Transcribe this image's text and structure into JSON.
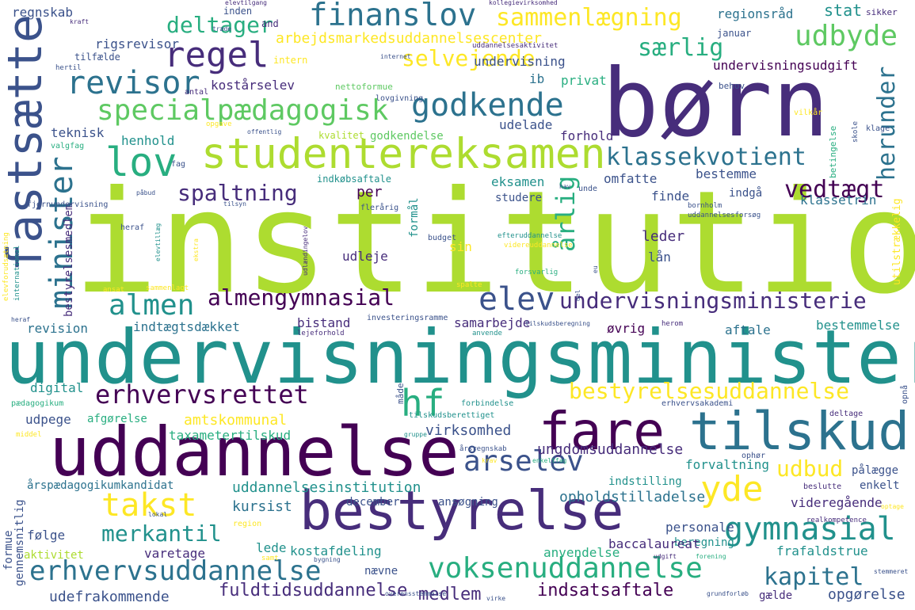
{
  "colors": {
    "background": "#ffffff",
    "palette": [
      "#440154",
      "#472d7b",
      "#3b528b",
      "#2c728e",
      "#21918c",
      "#28ae80",
      "#5ec962",
      "#addc30",
      "#fde725"
    ]
  },
  "words": [
    {
      "text": "institution",
      "color": "#addc30"
    },
    {
      "text": "undervisningsminister",
      "color": "#21918c"
    },
    {
      "text": "børn",
      "color": "#472d7b"
    },
    {
      "text": "uddannelse",
      "color": "#440154"
    },
    {
      "text": "bestyrelse",
      "color": "#472d7b"
    },
    {
      "text": "tilskud",
      "color": "#2c728e"
    },
    {
      "text": "fare",
      "color": "#440154"
    },
    {
      "text": "studentereksamen",
      "color": "#addc30"
    },
    {
      "text": "fastsætte",
      "color": "#3b528b"
    },
    {
      "text": "minister",
      "color": "#2c728e"
    },
    {
      "text": "specialpædagogisk",
      "color": "#5ec962"
    },
    {
      "text": "finanslov",
      "color": "#2c728e"
    },
    {
      "text": "regel",
      "color": "#472d7b"
    },
    {
      "text": "revisor",
      "color": "#2c728e"
    },
    {
      "text": "godkende",
      "color": "#2c728e"
    },
    {
      "text": "lov",
      "color": "#28ae80"
    },
    {
      "text": "deltager",
      "color": "#28ae80"
    },
    {
      "text": "sammenlægning",
      "color": "#fde725"
    },
    {
      "text": "udbyde",
      "color": "#5ec962"
    },
    {
      "text": "særlig",
      "color": "#28ae80"
    },
    {
      "text": "selvejende",
      "color": "#fde725"
    },
    {
      "text": "klassekvotient",
      "color": "#2c728e"
    },
    {
      "text": "herunder",
      "color": "#2c728e"
    },
    {
      "text": "spaltning",
      "color": "#472d7b"
    },
    {
      "text": "vedtægt",
      "color": "#440154"
    },
    {
      "text": "årlig",
      "color": "#28ae80"
    },
    {
      "text": "almen",
      "color": "#21918c"
    },
    {
      "text": "almengymnasial",
      "color": "#440154"
    },
    {
      "text": "elev",
      "color": "#3b528b"
    },
    {
      "text": "undervisningsministerie",
      "color": "#472d7b"
    },
    {
      "text": "erhvervsrettet",
      "color": "#440154"
    },
    {
      "text": "hf",
      "color": "#28ae80"
    },
    {
      "text": "bestyrelsesuddannelse",
      "color": "#fde725"
    },
    {
      "text": "takst",
      "color": "#fde725"
    },
    {
      "text": "merkantil",
      "color": "#21918c"
    },
    {
      "text": "årselev",
      "color": "#3b528b"
    },
    {
      "text": "yde",
      "color": "#fde725"
    },
    {
      "text": "gymnasial",
      "color": "#21918c"
    },
    {
      "text": "erhvervsuddannelse",
      "color": "#2c728e"
    },
    {
      "text": "voksenuddannelse",
      "color": "#28ae80"
    },
    {
      "text": "kapitel",
      "color": "#2c728e"
    },
    {
      "text": "udbud",
      "color": "#fde725"
    },
    {
      "text": "ungdomsuddannelse",
      "color": "#472d7b"
    },
    {
      "text": "virksomhed",
      "color": "#3b528b"
    },
    {
      "text": "uddannelsesinstitution",
      "color": "#21918c"
    },
    {
      "text": "kursist",
      "color": "#2c728e"
    },
    {
      "text": "fuldtidsuddannelse",
      "color": "#472d7b"
    },
    {
      "text": "udefrakommende",
      "color": "#3b528b"
    },
    {
      "text": "medlem",
      "color": "#472d7b"
    },
    {
      "text": "indsatsaftale",
      "color": "#440154"
    },
    {
      "text": "opgørelse",
      "color": "#3b528b"
    },
    {
      "text": "regnskab",
      "color": "#3b528b"
    },
    {
      "text": "rigsrevisor",
      "color": "#3b528b"
    },
    {
      "text": "arbejdsmarkedsuddannelsescenter",
      "color": "#fde725"
    },
    {
      "text": "regionsråd",
      "color": "#2c728e"
    },
    {
      "text": "stat",
      "color": "#21918c"
    },
    {
      "text": "undervisningsudgift",
      "color": "#440154"
    },
    {
      "text": "kostårselev",
      "color": "#472d7b"
    },
    {
      "text": "undervisning",
      "color": "#3b528b"
    },
    {
      "text": "ib",
      "color": "#2c728e"
    },
    {
      "text": "privat",
      "color": "#28ae80"
    },
    {
      "text": "udelade",
      "color": "#3b528b"
    },
    {
      "text": "forhold",
      "color": "#472d7b"
    },
    {
      "text": "teknisk",
      "color": "#3b528b"
    },
    {
      "text": "henhold",
      "color": "#21918c"
    },
    {
      "text": "godkendelse",
      "color": "#5ec962"
    },
    {
      "text": "kvalitet",
      "color": "#addc30"
    },
    {
      "text": "omfatte",
      "color": "#3b528b"
    },
    {
      "text": "bestemme",
      "color": "#3b528b"
    },
    {
      "text": "per",
      "color": "#440154"
    },
    {
      "text": "eksamen",
      "color": "#21918c"
    },
    {
      "text": "finde",
      "color": "#3b528b"
    },
    {
      "text": "indgå",
      "color": "#3b528b"
    },
    {
      "text": "klassetrin",
      "color": "#2c728e"
    },
    {
      "text": "studere",
      "color": "#3b528b"
    },
    {
      "text": "leder",
      "color": "#472d7b"
    },
    {
      "text": "lån",
      "color": "#3b528b"
    },
    {
      "text": "udleje",
      "color": "#472d7b"
    },
    {
      "text": "sin",
      "color": "#fde725"
    },
    {
      "text": "revision",
      "color": "#2c728e"
    },
    {
      "text": "indtægtsdækket",
      "color": "#2c728e"
    },
    {
      "text": "bistand",
      "color": "#472d7b"
    },
    {
      "text": "samarbejde",
      "color": "#472d7b"
    },
    {
      "text": "øvrig",
      "color": "#440154"
    },
    {
      "text": "aftale",
      "color": "#2c728e"
    },
    {
      "text": "bestemmelse",
      "color": "#21918c"
    },
    {
      "text": "amtskommunal",
      "color": "#fde725"
    },
    {
      "text": "taxametertilskud",
      "color": "#28ae80"
    },
    {
      "text": "udpege",
      "color": "#3b528b"
    },
    {
      "text": "afgørelse",
      "color": "#28ae80"
    },
    {
      "text": "digital",
      "color": "#21918c"
    },
    {
      "text": "forvaltning",
      "color": "#21918c"
    },
    {
      "text": "indstilling",
      "color": "#21918c"
    },
    {
      "text": "pålægge",
      "color": "#3b528b"
    },
    {
      "text": "enkelt",
      "color": "#3b528b"
    },
    {
      "text": "videregående",
      "color": "#472d7b"
    },
    {
      "text": "årspædagogikumkandidat",
      "color": "#2c728e"
    },
    {
      "text": "december",
      "color": "#3b528b"
    },
    {
      "text": "ansøgning",
      "color": "#3b528b"
    },
    {
      "text": "opholdstilladelse",
      "color": "#2c728e"
    },
    {
      "text": "personale",
      "color": "#3b528b"
    },
    {
      "text": "beregning",
      "color": "#21918c"
    },
    {
      "text": "følge",
      "color": "#3b528b"
    },
    {
      "text": "varetage",
      "color": "#472d7b"
    },
    {
      "text": "lede",
      "color": "#21918c"
    },
    {
      "text": "kostafdeling",
      "color": "#21918c"
    },
    {
      "text": "baccalaureat",
      "color": "#472d7b"
    },
    {
      "text": "frafaldstrue",
      "color": "#21918c"
    },
    {
      "text": "anvendelse",
      "color": "#28ae80"
    },
    {
      "text": "aktivitet",
      "color": "#addc30"
    },
    {
      "text": "nævne",
      "color": "#3b528b"
    },
    {
      "text": "gælde",
      "color": "#472d7b"
    },
    {
      "text": "formue",
      "color": "#3b528b"
    },
    {
      "text": "gennemsnitlig",
      "color": "#3b528b"
    },
    {
      "text": "bestyrelsesmedlem",
      "color": "#472d7b"
    },
    {
      "text": "formål",
      "color": "#21918c"
    },
    {
      "text": "betingelse",
      "color": "#28ae80"
    },
    {
      "text": "utilstrækkelig",
      "color": "#fde725"
    },
    {
      "text": "and",
      "color": "#472d7b"
    },
    {
      "text": "inden",
      "color": "#3b528b"
    },
    {
      "text": "januar",
      "color": "#3b528b"
    },
    {
      "text": "sikker",
      "color": "#472d7b"
    },
    {
      "text": "tilfælde",
      "color": "#3b528b"
    },
    {
      "text": "intern",
      "color": "#fde725"
    },
    {
      "text": "behov",
      "color": "#3b528b"
    },
    {
      "text": "antal",
      "color": "#472d7b"
    },
    {
      "text": "nettoformue",
      "color": "#5ec962"
    },
    {
      "text": "lovgivning",
      "color": "#3b528b"
    },
    {
      "text": "internet",
      "color": "#3b528b"
    },
    {
      "text": "uddannelsesaktivitet",
      "color": "#472d7b"
    },
    {
      "text": "elevtilgang",
      "color": "#472d7b"
    },
    {
      "text": "kollegievirksomhed",
      "color": "#472d7b"
    },
    {
      "text": "kraft",
      "color": "#472d7b"
    },
    {
      "text": "træde",
      "color": "#3b528b"
    },
    {
      "text": "hertil",
      "color": "#3b528b"
    },
    {
      "text": "opgave",
      "color": "#fde725"
    },
    {
      "text": "offentlig",
      "color": "#3b528b"
    },
    {
      "text": "vilkår",
      "color": "#fde725"
    },
    {
      "text": "skole",
      "color": "#3b528b"
    },
    {
      "text": "klage",
      "color": "#3b528b"
    },
    {
      "text": "valgfag",
      "color": "#28ae80"
    },
    {
      "text": "fag",
      "color": "#3b528b"
    },
    {
      "text": "indkøbsaftale",
      "color": "#21918c"
    },
    {
      "text": "fjernundervisning",
      "color": "#3b528b"
    },
    {
      "text": "heraf",
      "color": "#3b528b"
    },
    {
      "text": "heraf",
      "color": "#3b528b"
    },
    {
      "text": "ejendom",
      "color": "#28ae80"
    },
    {
      "text": "koordinere",
      "color": "#3b528b"
    },
    {
      "text": "gennemføre",
      "color": "#3b528b"
    },
    {
      "text": "aktivitetsindberetning",
      "color": "#472d7b"
    },
    {
      "text": "måde",
      "color": "#3b528b"
    },
    {
      "text": "tilskudsberettiget",
      "color": "#21918c"
    },
    {
      "text": "forbindelse",
      "color": "#21918c"
    },
    {
      "text": "erhvervsakademi",
      "color": "#3b528b"
    },
    {
      "text": "deltage",
      "color": "#472d7b"
    },
    {
      "text": "opnå",
      "color": "#3b528b"
    },
    {
      "text": "pædagogikum",
      "color": "#28ae80"
    },
    {
      "text": "middel",
      "color": "#fde725"
    },
    {
      "text": "gruppe",
      "color": "#21918c"
    },
    {
      "text": "årsregnskab",
      "color": "#3b528b"
    },
    {
      "text": "krav",
      "color": "#fde725"
    },
    {
      "text": "enkeltfag",
      "color": "#28ae80"
    },
    {
      "text": "ophør",
      "color": "#3b528b"
    },
    {
      "text": "beslutte",
      "color": "#472d7b"
    },
    {
      "text": "optage",
      "color": "#fde725"
    },
    {
      "text": "region",
      "color": "#fde725"
    },
    {
      "text": "lokal",
      "color": "#3b528b"
    },
    {
      "text": "realkompetence",
      "color": "#472d7b"
    },
    {
      "text": "samt",
      "color": "#fde725"
    },
    {
      "text": "bygning",
      "color": "#3b528b"
    },
    {
      "text": "udgift",
      "color": "#472d7b"
    },
    {
      "text": "forening",
      "color": "#28ae80"
    },
    {
      "text": "stemmeret",
      "color": "#3b528b"
    },
    {
      "text": "overensstemmelse",
      "color": "#3b528b"
    },
    {
      "text": "virke",
      "color": "#3b528b"
    },
    {
      "text": "grundforløb",
      "color": "#3b528b"
    },
    {
      "text": "udlændingelov",
      "color": "#472d7b"
    },
    {
      "text": "bornholm",
      "color": "#3b528b"
    },
    {
      "text": "uddannelsesforsøg",
      "color": "#3b528b"
    },
    {
      "text": "unde",
      "color": "#3b528b"
    },
    {
      "text": "flerårig",
      "color": "#3b528b"
    },
    {
      "text": "påbud",
      "color": "#3b528b"
    },
    {
      "text": "tilsyn",
      "color": "#3b528b"
    },
    {
      "text": "hav",
      "color": "#3b528b"
    },
    {
      "text": "budget",
      "color": "#3b528b"
    },
    {
      "text": "efteruddannelse",
      "color": "#21918c"
    },
    {
      "text": "videreuddannelse",
      "color": "#fde725"
    },
    {
      "text": "forsvarlig",
      "color": "#28ae80"
    },
    {
      "text": "spalte",
      "color": "#fde725"
    },
    {
      "text": "sammenlagt",
      "color": "#fde725"
    },
    {
      "text": "tilskudsberegning",
      "color": "#3b528b"
    },
    {
      "text": "herom",
      "color": "#472d7b"
    },
    {
      "text": "anvende",
      "color": "#21918c"
    },
    {
      "text": "investeringsramme",
      "color": "#3b528b"
    },
    {
      "text": "lejeforhold",
      "color": "#472d7b"
    },
    {
      "text": "andel",
      "color": "#472d7b"
    },
    {
      "text": "ansat",
      "color": "#fde725"
    },
    {
      "text": "international",
      "color": "#21918c"
    },
    {
      "text": "elevforudsætning",
      "color": "#fde725"
    },
    {
      "text": "elevtillæg",
      "color": "#21918c"
    },
    {
      "text": "ekstra",
      "color": "#fde725"
    },
    {
      "text": "del",
      "color": "#3b528b"
    },
    {
      "text": "eu",
      "color": "#3b528b"
    }
  ]
}
